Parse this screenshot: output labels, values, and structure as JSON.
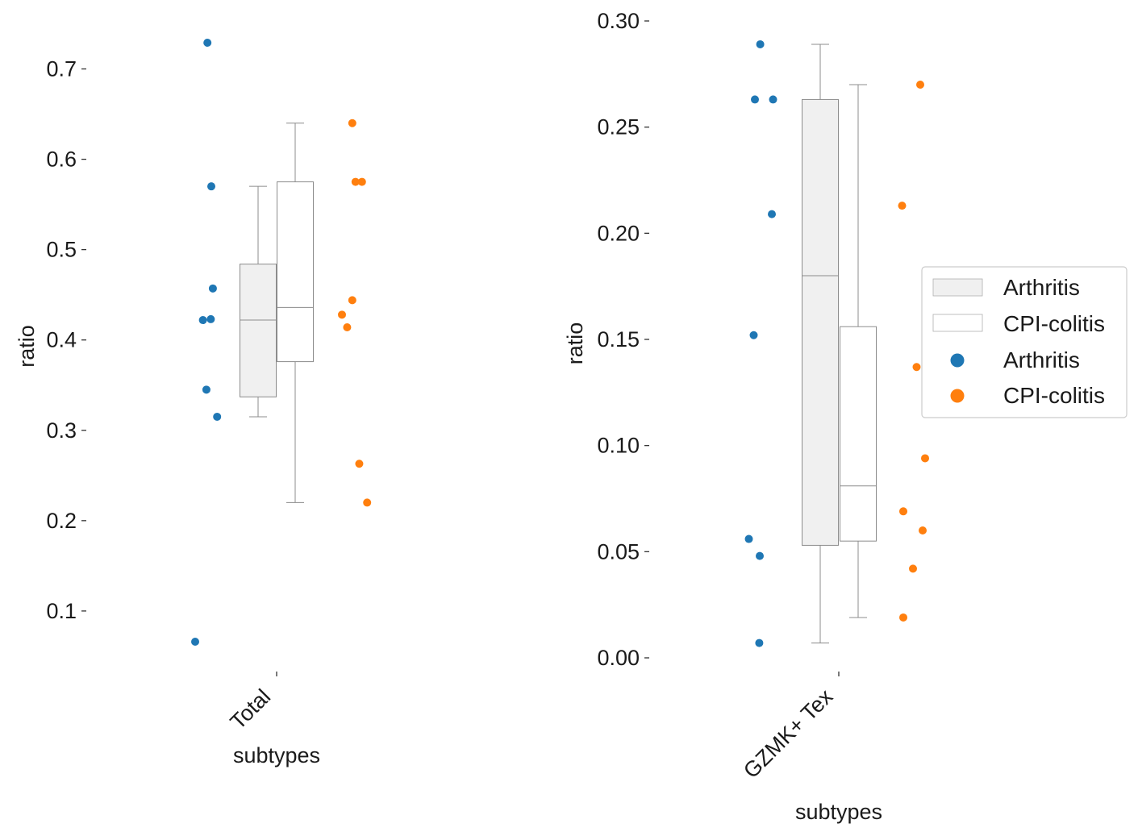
{
  "chart_data": [
    {
      "type": "box+strip",
      "xlabel": "subtypes",
      "ylabel": "ratio",
      "categories": [
        "Total"
      ],
      "ylim": [
        0.03,
        0.73
      ],
      "yticks": [
        0.1,
        0.2,
        0.3,
        0.4,
        0.5,
        0.6,
        0.7
      ],
      "yticklabels": [
        "0.1",
        "0.2",
        "0.3",
        "0.4",
        "0.5",
        "0.6",
        "0.7"
      ],
      "series": [
        {
          "name": "Arthritis",
          "color": "#1f77b4",
          "box": {
            "whisker_low": 0.315,
            "q1": 0.337,
            "median": 0.422,
            "q3": 0.484,
            "whisker_high": 0.57,
            "fill": "#f0f0f0"
          },
          "points": [
            0.729,
            0.57,
            0.457,
            0.422,
            0.423,
            0.345,
            0.315,
            0.066
          ],
          "jitter": [
            -0.03,
            0.0,
            0.012,
            -0.065,
            -0.004,
            -0.038,
            0.045,
            -0.125
          ]
        },
        {
          "name": "CPI-colitis",
          "color": "#ff7f0e",
          "box": {
            "whisker_low": 0.22,
            "q1": 0.376,
            "median": 0.436,
            "q3": 0.575,
            "whisker_high": 0.64,
            "fill": "#ffffff"
          },
          "points": [
            0.64,
            0.575,
            0.575,
            0.444,
            0.428,
            0.414,
            0.263,
            0.22
          ],
          "jitter": [
            -0.02,
            0.005,
            0.055,
            -0.02,
            -0.1,
            -0.06,
            0.034,
            0.095
          ]
        }
      ]
    },
    {
      "type": "box+strip",
      "xlabel": "subtypes",
      "ylabel": "ratio",
      "categories": [
        "GZMK+ Tex"
      ],
      "ylim": [
        0.0,
        0.3
      ],
      "yticks": [
        0.0,
        0.05,
        0.1,
        0.15,
        0.2,
        0.25,
        0.3
      ],
      "yticklabels": [
        "0.00",
        "0.05",
        "0.10",
        "0.15",
        "0.20",
        "0.25",
        "0.30"
      ],
      "series": [
        {
          "name": "Arthritis",
          "color": "#1f77b4",
          "box": {
            "whisker_low": 0.007,
            "q1": 0.053,
            "median": 0.18,
            "q3": 0.263,
            "whisker_high": 0.289,
            "fill": "#f0f0f0"
          },
          "points": [
            0.289,
            0.263,
            0.263,
            0.209,
            0.152,
            0.056,
            0.048,
            0.007
          ],
          "jitter": [
            -0.18,
            -0.4,
            0.35,
            0.3,
            -0.45,
            -0.65,
            -0.2,
            -0.22
          ]
        },
        {
          "name": "CPI-colitis",
          "color": "#ff7f0e",
          "box": {
            "whisker_low": 0.019,
            "q1": 0.055,
            "median": 0.081,
            "q3": 0.156,
            "whisker_high": 0.27,
            "fill": "#ffffff"
          },
          "points": [
            0.27,
            0.213,
            0.137,
            0.094,
            0.069,
            0.06,
            0.042,
            0.019
          ],
          "jitter": [
            0.2,
            -0.55,
            0.05,
            0.4,
            -0.5,
            0.3,
            -0.1,
            -0.5
          ]
        }
      ]
    }
  ],
  "legend": {
    "entries": [
      {
        "label": "Arthritis",
        "kind": "patch",
        "fill": "#f0f0f0"
      },
      {
        "label": "CPI-colitis",
        "kind": "patch",
        "fill": "#ffffff"
      },
      {
        "label": "Arthritis",
        "kind": "marker",
        "color": "#1f77b4"
      },
      {
        "label": "CPI-colitis",
        "kind": "marker",
        "color": "#ff7f0e"
      }
    ]
  }
}
